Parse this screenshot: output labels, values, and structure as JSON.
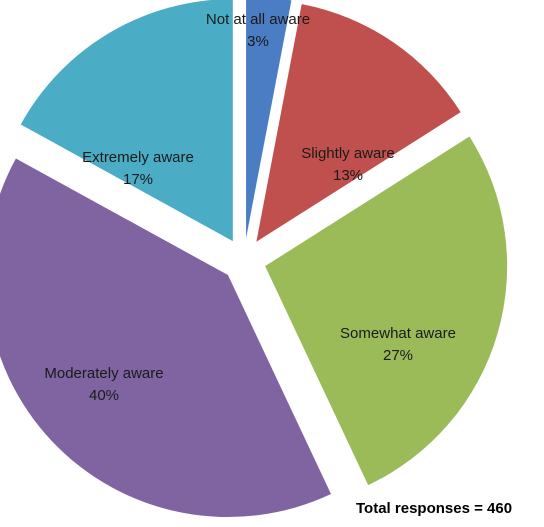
{
  "chart_data": {
    "type": "pie",
    "slices": [
      {
        "label": "Not at all aware",
        "pct_label": "3%",
        "value": 3,
        "color": "#4a7dc4"
      },
      {
        "label": "Slightly aware",
        "pct_label": "13%",
        "value": 13,
        "color": "#c0504d"
      },
      {
        "label": "Somewhat aware",
        "pct_label": "27%",
        "value": 27,
        "color": "#9bbb59"
      },
      {
        "label": "Moderately aware",
        "pct_label": "40%",
        "value": 40,
        "color": "#8064a2"
      },
      {
        "label": "Extremely aware",
        "pct_label": "17%",
        "value": 17,
        "color": "#4bacc6"
      }
    ],
    "exploded": true,
    "start": "top",
    "direction": "clockwise"
  },
  "note": "Total responses = 460"
}
